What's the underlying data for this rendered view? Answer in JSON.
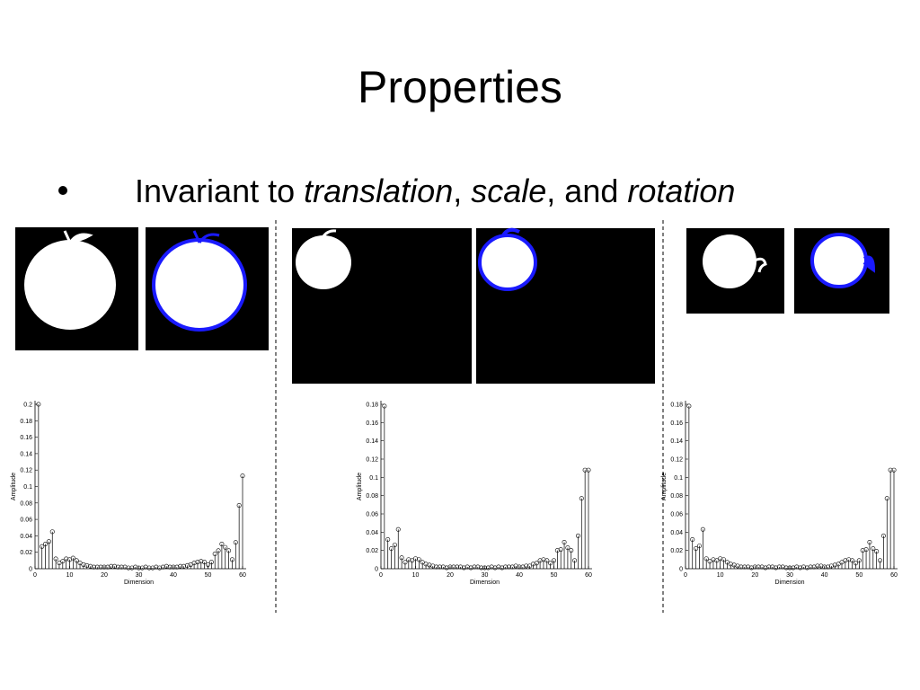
{
  "title": "Properties",
  "bullet": [
    "Invariant to ",
    "translation",
    ", ",
    "scale",
    ", and ",
    "rotation"
  ],
  "chart_data": [
    {
      "type": "stem",
      "xlabel": "Dimension",
      "ylabel": "Amplitude",
      "color": "#000000",
      "x": [
        1,
        2,
        3,
        4,
        5,
        6,
        7,
        8,
        9,
        10,
        11,
        12,
        13,
        14,
        15,
        16,
        17,
        18,
        19,
        20,
        21,
        22,
        23,
        24,
        25,
        26,
        27,
        28,
        29,
        30,
        31,
        32,
        33,
        34,
        35,
        36,
        37,
        38,
        39,
        40,
        41,
        42,
        43,
        44,
        45,
        46,
        47,
        48,
        49,
        50,
        51,
        52,
        53,
        54,
        55,
        56,
        57,
        58,
        59,
        60
      ],
      "values": [
        0.2,
        0.027,
        0.03,
        0.033,
        0.045,
        0.012,
        0.007,
        0.009,
        0.012,
        0.011,
        0.013,
        0.01,
        0.007,
        0.005,
        0.004,
        0.003,
        0.002,
        0.002,
        0.002,
        0.002,
        0.002,
        0.003,
        0.003,
        0.002,
        0.002,
        0.002,
        0.001,
        0.001,
        0.002,
        0.001,
        0.001,
        0.002,
        0.001,
        0.001,
        0.002,
        0.001,
        0.002,
        0.003,
        0.002,
        0.002,
        0.002,
        0.003,
        0.003,
        0.004,
        0.005,
        0.007,
        0.008,
        0.009,
        0.008,
        0.005,
        0.008,
        0.018,
        0.022,
        0.03,
        0.026,
        0.022,
        0.011,
        0.032,
        0.077,
        0.113
      ],
      "xlim": [
        0,
        60
      ],
      "xticks": [
        0,
        10,
        20,
        30,
        40,
        50,
        60
      ],
      "ylim": [
        0,
        0.2
      ],
      "yticks": [
        0,
        0.02,
        0.04,
        0.06,
        0.08,
        0.1,
        0.12,
        0.14,
        0.16,
        0.18,
        0.2
      ]
    },
    {
      "type": "stem",
      "xlabel": "Dimension",
      "ylabel": "Amplitude",
      "color": "#000000",
      "x": [
        1,
        2,
        3,
        4,
        5,
        6,
        7,
        8,
        9,
        10,
        11,
        12,
        13,
        14,
        15,
        16,
        17,
        18,
        19,
        20,
        21,
        22,
        23,
        24,
        25,
        26,
        27,
        28,
        29,
        30,
        31,
        32,
        33,
        34,
        35,
        36,
        37,
        38,
        39,
        40,
        41,
        42,
        43,
        44,
        45,
        46,
        47,
        48,
        49,
        50,
        51,
        52,
        53,
        54,
        55,
        56,
        57,
        58,
        59,
        60
      ],
      "values": [
        0.178,
        0.032,
        0.022,
        0.026,
        0.043,
        0.012,
        0.007,
        0.01,
        0.009,
        0.011,
        0.01,
        0.007,
        0.005,
        0.004,
        0.003,
        0.002,
        0.002,
        0.002,
        0.001,
        0.002,
        0.002,
        0.002,
        0.002,
        0.001,
        0.002,
        0.001,
        0.002,
        0.002,
        0.001,
        0.001,
        0.001,
        0.002,
        0.001,
        0.002,
        0.001,
        0.002,
        0.002,
        0.002,
        0.003,
        0.002,
        0.002,
        0.003,
        0.003,
        0.005,
        0.006,
        0.009,
        0.01,
        0.009,
        0.006,
        0.009,
        0.02,
        0.021,
        0.029,
        0.023,
        0.02,
        0.009,
        0.036,
        0.077,
        0.108,
        0.108
      ],
      "xlim": [
        0,
        60
      ],
      "xticks": [
        0,
        10,
        20,
        30,
        40,
        50,
        60
      ],
      "ylim": [
        0,
        0.18
      ],
      "yticks": [
        0,
        0.02,
        0.04,
        0.06,
        0.08,
        0.1,
        0.12,
        0.14,
        0.16,
        0.18
      ]
    },
    {
      "type": "stem",
      "xlabel": "Dimension",
      "ylabel": "Amplitude",
      "color": "#000000",
      "x": [
        1,
        2,
        3,
        4,
        5,
        6,
        7,
        8,
        9,
        10,
        11,
        12,
        13,
        14,
        15,
        16,
        17,
        18,
        19,
        20,
        21,
        22,
        23,
        24,
        25,
        26,
        27,
        28,
        29,
        30,
        31,
        32,
        33,
        34,
        35,
        36,
        37,
        38,
        39,
        40,
        41,
        42,
        43,
        44,
        45,
        46,
        47,
        48,
        49,
        50,
        51,
        52,
        53,
        54,
        55,
        56,
        57,
        58,
        59,
        60
      ],
      "values": [
        0.178,
        0.032,
        0.022,
        0.025,
        0.043,
        0.011,
        0.008,
        0.01,
        0.009,
        0.011,
        0.01,
        0.007,
        0.005,
        0.004,
        0.003,
        0.002,
        0.002,
        0.002,
        0.001,
        0.002,
        0.002,
        0.002,
        0.001,
        0.002,
        0.002,
        0.001,
        0.002,
        0.002,
        0.001,
        0.001,
        0.001,
        0.002,
        0.001,
        0.002,
        0.001,
        0.002,
        0.002,
        0.003,
        0.003,
        0.002,
        0.002,
        0.003,
        0.004,
        0.005,
        0.007,
        0.009,
        0.01,
        0.009,
        0.006,
        0.009,
        0.02,
        0.021,
        0.029,
        0.022,
        0.019,
        0.009,
        0.036,
        0.077,
        0.108,
        0.108
      ],
      "xlim": [
        0,
        60
      ],
      "xticks": [
        0,
        10,
        20,
        30,
        40,
        50,
        60
      ],
      "ylim": [
        0,
        0.18
      ],
      "yticks": [
        0,
        0.02,
        0.04,
        0.06,
        0.08,
        0.1,
        0.12,
        0.14,
        0.16,
        0.18
      ]
    }
  ]
}
